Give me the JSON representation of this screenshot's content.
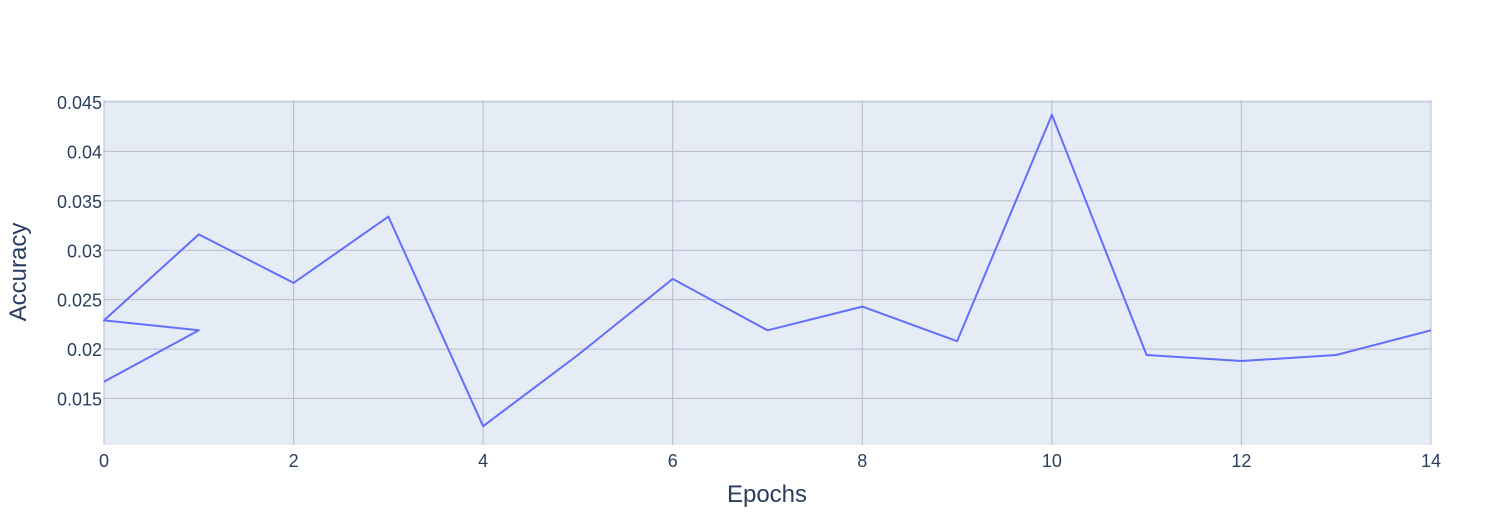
{
  "chart_data": {
    "type": "line",
    "title": "",
    "xlabel": "Epochs",
    "ylabel": "Accuracy",
    "xlim": [
      0,
      14
    ],
    "ylim": [
      0.0103,
      0.0452
    ],
    "x_ticks": [
      0,
      2,
      4,
      6,
      8,
      10,
      12,
      14
    ],
    "x_tick_labels": [
      "0",
      "2",
      "4",
      "6",
      "8",
      "10",
      "12",
      "14"
    ],
    "y_ticks": [
      0.015,
      0.02,
      0.025,
      0.03,
      0.035,
      0.04,
      0.045
    ],
    "y_tick_labels": [
      "0.015",
      "0.02",
      "0.025",
      "0.03",
      "0.035",
      "0.04",
      "0.045"
    ],
    "grid": true,
    "legend": "none",
    "colors": {
      "line": "#636efa",
      "plot_bg": "#e5ecf6",
      "grid": "#b8bccb",
      "text": "#2a3f5f"
    },
    "series": [
      {
        "points": [
          [
            0,
            0.0167
          ],
          [
            1,
            0.0219
          ],
          [
            0,
            0.0229
          ],
          [
            1,
            0.0316
          ],
          [
            2,
            0.0267
          ],
          [
            3,
            0.0334
          ],
          [
            4,
            0.0122
          ],
          [
            5,
            0.0194
          ],
          [
            6,
            0.0271
          ],
          [
            7,
            0.0219
          ],
          [
            8,
            0.0243
          ],
          [
            9,
            0.0208
          ],
          [
            10,
            0.0437
          ],
          [
            11,
            0.0194
          ],
          [
            12,
            0.0188
          ],
          [
            13,
            0.0194
          ],
          [
            14,
            0.0219
          ]
        ]
      }
    ]
  }
}
